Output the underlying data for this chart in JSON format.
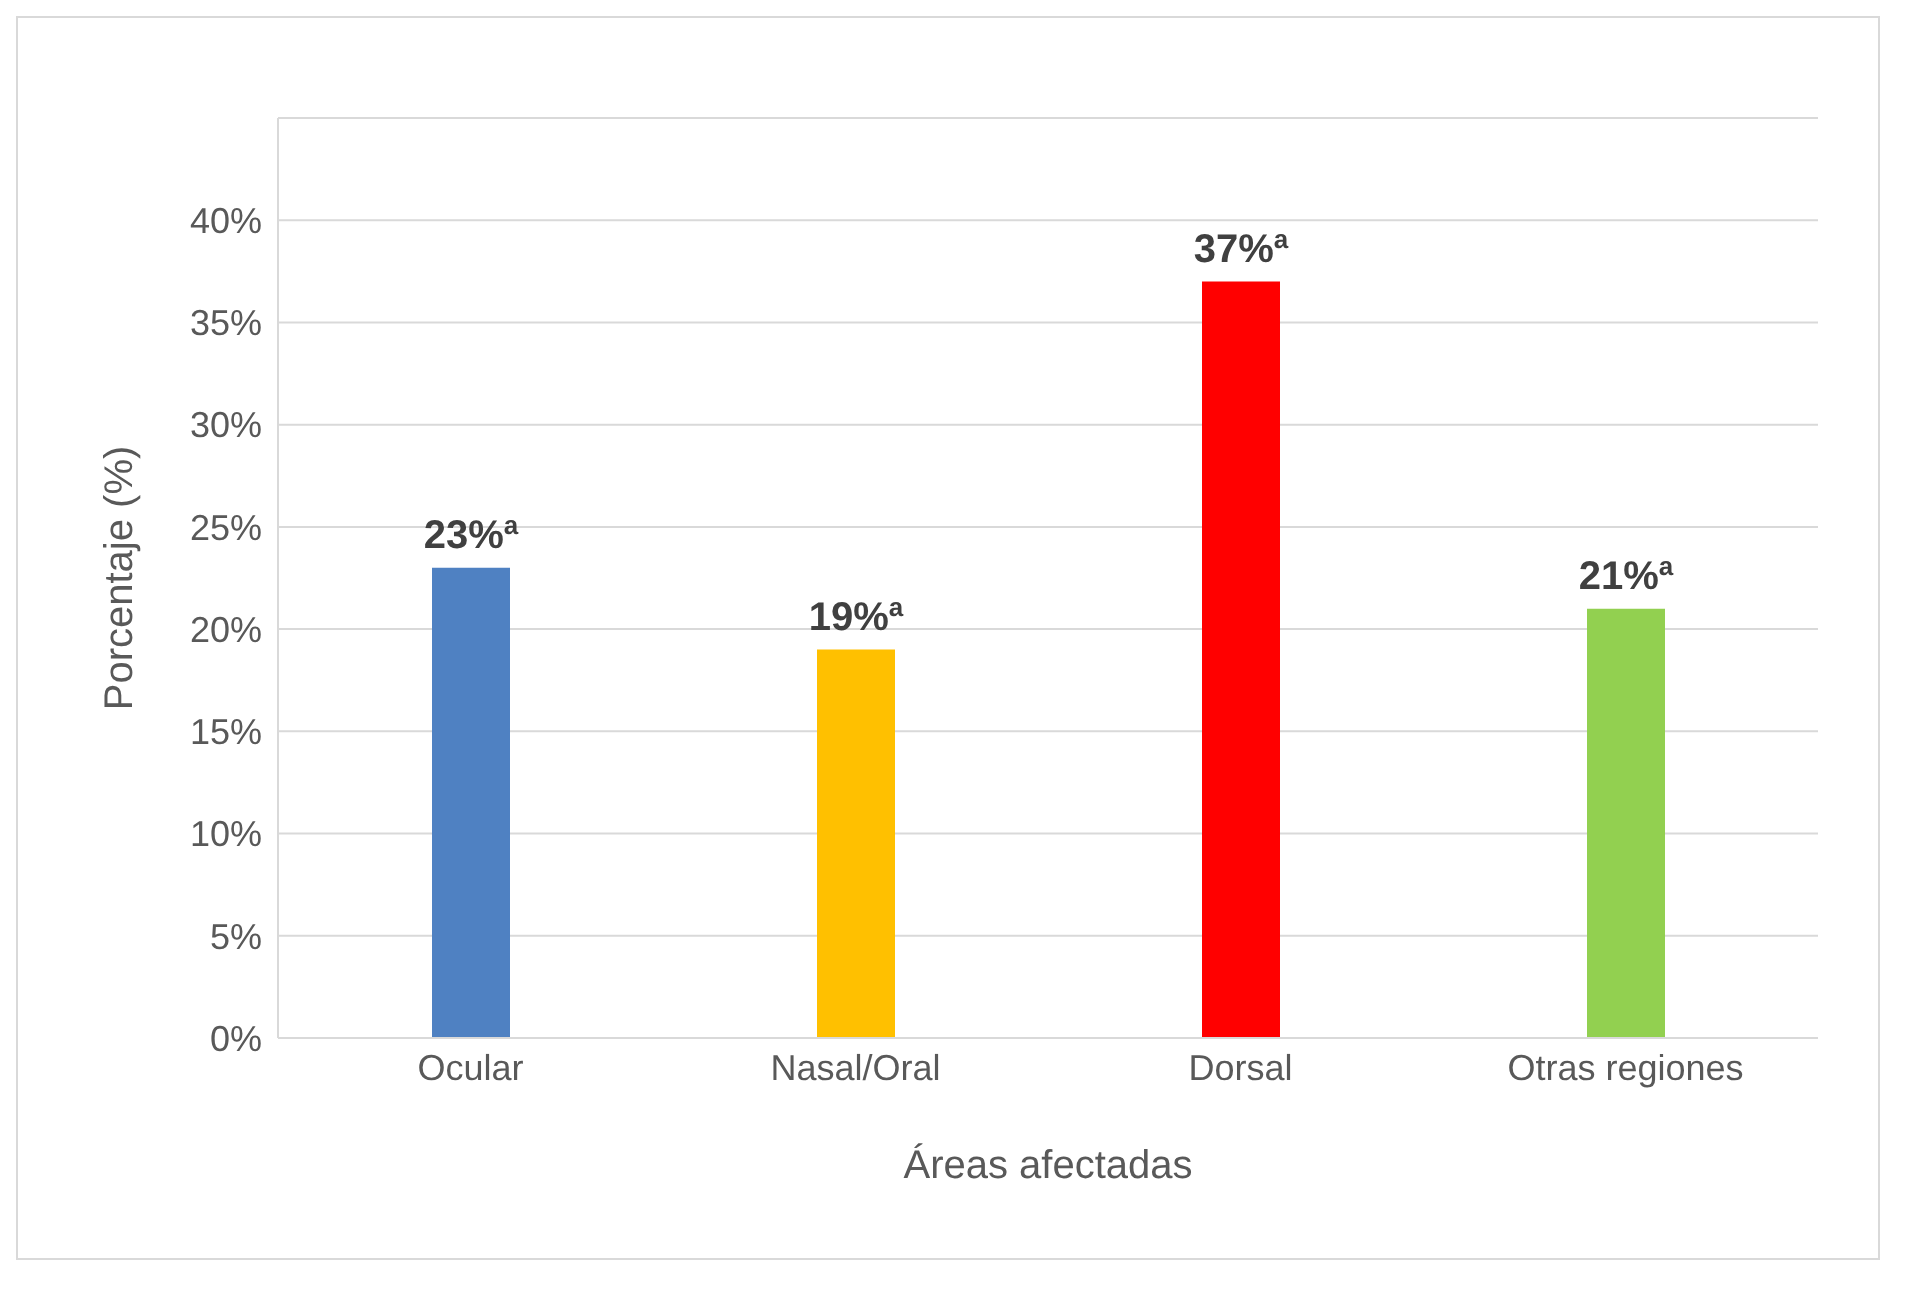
{
  "chart_data": {
    "type": "bar",
    "xlabel": "Áreas afectadas",
    "ylabel": "Porcentaje (%)",
    "categories": [
      "Ocular",
      "Nasal/Oral",
      "Dorsal",
      "Otras regiones"
    ],
    "values": [
      23,
      19,
      37,
      21
    ],
    "colors": [
      "#4f81c2",
      "#ffc000",
      "#ff0000",
      "#92d050"
    ],
    "value_labels": [
      "23%$^{a}$",
      "19%$^{a}$",
      "37%$^{a}$",
      "21%$^{a}$"
    ],
    "ylim": [
      0,
      45
    ],
    "yticks": [
      {
        "value": 0,
        "label": "0%"
      },
      {
        "value": 5,
        "label": "5%"
      },
      {
        "value": 10,
        "label": "10%"
      },
      {
        "value": 15,
        "label": "15%"
      },
      {
        "value": 20,
        "label": "20%"
      },
      {
        "value": 25,
        "label": "25%"
      },
      {
        "value": 30,
        "label": "30%"
      },
      {
        "value": 35,
        "label": "35%"
      },
      {
        "value": 40,
        "label": "40%"
      },
      {
        "value": 45,
        "label": null
      }
    ],
    "grid": "y"
  }
}
